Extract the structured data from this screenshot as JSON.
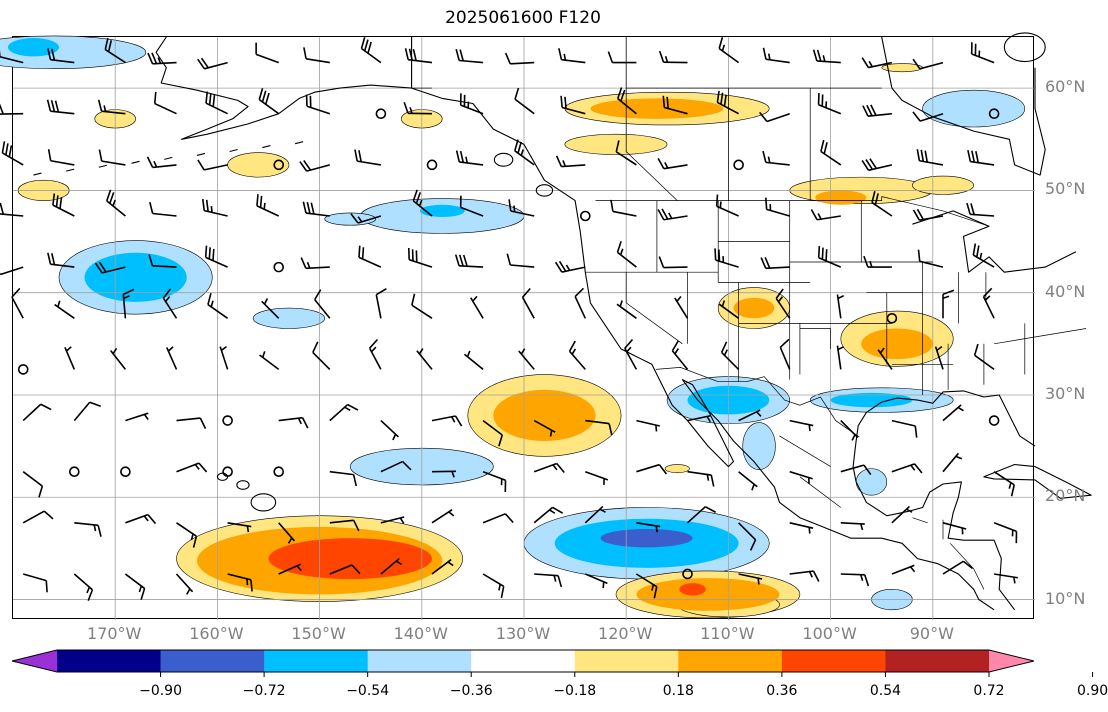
{
  "title": "2025061600 F120",
  "lat_ticks": [
    {
      "label": "60°N",
      "lat": 60
    },
    {
      "label": "50°N",
      "lat": 50
    },
    {
      "label": "40°N",
      "lat": 40
    },
    {
      "label": "30°N",
      "lat": 30
    },
    {
      "label": "20°N",
      "lat": 20
    },
    {
      "label": "10°N",
      "lat": 10
    }
  ],
  "lon_ticks": [
    {
      "label": "170°W",
      "lon": -170
    },
    {
      "label": "160°W",
      "lon": -160
    },
    {
      "label": "150°W",
      "lon": -150
    },
    {
      "label": "140°W",
      "lon": -140
    },
    {
      "label": "130°W",
      "lon": -130
    },
    {
      "label": "120°W",
      "lon": -120
    },
    {
      "label": "110°W",
      "lon": -110
    },
    {
      "label": "100°W",
      "lon": -100
    },
    {
      "label": "90°W",
      "lon": -90
    }
  ],
  "colorbar": {
    "levels": [
      "−0.90",
      "−0.72",
      "−0.54",
      "−0.36",
      "−0.18",
      "0.18",
      "0.36",
      "0.54",
      "0.72",
      "0.90"
    ],
    "colors": [
      "#9b30d6",
      "#00008b",
      "#3a5fcd",
      "#00bfff",
      "#b0e0ff",
      "#ffffff",
      "#ffe680",
      "#ffa500",
      "#ff4500",
      "#b22222",
      "#ff88aa"
    ]
  },
  "map": {
    "extent": {
      "lon_min": -180,
      "lon_max": -80,
      "lat_min": 8,
      "lat_max": 65
    },
    "gridline_color": "#a0a0a0",
    "coastline_color": "#000000",
    "anomaly_regions": [
      {
        "sign": "neg",
        "level": 1,
        "lon": -176,
        "lat": 63.5,
        "rx": 9,
        "ry": 1.6
      },
      {
        "sign": "neg",
        "level": 2,
        "lon": -178,
        "lat": 64,
        "rx": 2.5,
        "ry": 0.9
      },
      {
        "sign": "neg",
        "level": 1,
        "lon": -168,
        "lat": 41.5,
        "rx": 7.5,
        "ry": 3.6
      },
      {
        "sign": "neg",
        "level": 2,
        "lon": -168,
        "lat": 41.5,
        "rx": 5,
        "ry": 2.4
      },
      {
        "sign": "neg",
        "level": 1,
        "lon": -138,
        "lat": 47.5,
        "rx": 8,
        "ry": 1.7
      },
      {
        "sign": "neg",
        "level": 2,
        "lon": -138,
        "lat": 48,
        "rx": 2.2,
        "ry": 0.6
      },
      {
        "sign": "neg",
        "level": 1,
        "lon": -147,
        "lat": 47.2,
        "rx": 2.5,
        "ry": 0.6
      },
      {
        "sign": "neg",
        "level": 1,
        "lon": -153,
        "lat": 37.5,
        "rx": 3.5,
        "ry": 1.0
      },
      {
        "sign": "neg",
        "level": 1,
        "lon": -140,
        "lat": 23,
        "rx": 7,
        "ry": 1.8
      },
      {
        "sign": "neg",
        "level": 1,
        "lon": -118,
        "lat": 15.5,
        "rx": 12,
        "ry": 3.5
      },
      {
        "sign": "neg",
        "level": 2,
        "lon": -118,
        "lat": 15.5,
        "rx": 9,
        "ry": 2.4
      },
      {
        "sign": "neg",
        "level": 3,
        "lon": -118,
        "lat": 16,
        "rx": 4.5,
        "ry": 0.9
      },
      {
        "sign": "neg",
        "level": 1,
        "lon": -110,
        "lat": 29.5,
        "rx": 6,
        "ry": 2.3
      },
      {
        "sign": "neg",
        "level": 2,
        "lon": -110,
        "lat": 29.5,
        "rx": 4,
        "ry": 1.4
      },
      {
        "sign": "neg",
        "level": 1,
        "lon": -95,
        "lat": 29.5,
        "rx": 7,
        "ry": 1.2
      },
      {
        "sign": "neg",
        "level": 2,
        "lon": -96,
        "lat": 29.5,
        "rx": 4,
        "ry": 0.7
      },
      {
        "sign": "neg",
        "level": 1,
        "lon": -86,
        "lat": 58,
        "rx": 5,
        "ry": 1.8
      },
      {
        "sign": "neg",
        "level": 1,
        "lon": -107,
        "lat": 25,
        "rx": 1.6,
        "ry": 2.3
      },
      {
        "sign": "neg",
        "level": 1,
        "lon": -96,
        "lat": 21.5,
        "rx": 1.5,
        "ry": 1.3
      },
      {
        "sign": "neg",
        "level": 1,
        "lon": -94,
        "lat": 10,
        "rx": 2,
        "ry": 1.0
      },
      {
        "sign": "pos",
        "level": 1,
        "lon": -150,
        "lat": 14,
        "rx": 14,
        "ry": 4.2
      },
      {
        "sign": "pos",
        "level": 2,
        "lon": -150,
        "lat": 13.8,
        "rx": 12,
        "ry": 3.3
      },
      {
        "sign": "pos",
        "level": 3,
        "lon": -147,
        "lat": 14,
        "rx": 8,
        "ry": 2.0
      },
      {
        "sign": "pos",
        "level": 1,
        "lon": -128,
        "lat": 28,
        "rx": 7.5,
        "ry": 4.0
      },
      {
        "sign": "pos",
        "level": 2,
        "lon": -128,
        "lat": 28,
        "rx": 5,
        "ry": 2.5
      },
      {
        "sign": "pos",
        "level": 1,
        "lon": -112,
        "lat": 10.5,
        "rx": 9,
        "ry": 2.3
      },
      {
        "sign": "pos",
        "level": 2,
        "lon": -112,
        "lat": 10.5,
        "rx": 7,
        "ry": 1.6
      },
      {
        "sign": "pos",
        "level": 3,
        "lon": -113.5,
        "lat": 11,
        "rx": 1.3,
        "ry": 0.6
      },
      {
        "sign": "pos",
        "level": 1,
        "lon": -116,
        "lat": 58,
        "rx": 10,
        "ry": 1.6
      },
      {
        "sign": "pos",
        "level": 2,
        "lon": -117,
        "lat": 58,
        "rx": 6.5,
        "ry": 1.0
      },
      {
        "sign": "pos",
        "level": 1,
        "lon": -121,
        "lat": 54.5,
        "rx": 5,
        "ry": 1.0
      },
      {
        "sign": "pos",
        "level": 1,
        "lon": -93.5,
        "lat": 35.5,
        "rx": 5.5,
        "ry": 2.7
      },
      {
        "sign": "pos",
        "level": 2,
        "lon": -93.5,
        "lat": 35,
        "rx": 3.5,
        "ry": 1.5
      },
      {
        "sign": "pos",
        "level": 1,
        "lon": -107.5,
        "lat": 38.5,
        "rx": 3.5,
        "ry": 2.0
      },
      {
        "sign": "pos",
        "level": 2,
        "lon": -107.5,
        "lat": 38.5,
        "rx": 2.0,
        "ry": 1.0
      },
      {
        "sign": "pos",
        "level": 1,
        "lon": -97,
        "lat": 50,
        "rx": 7,
        "ry": 1.3
      },
      {
        "sign": "pos",
        "level": 2,
        "lon": -99,
        "lat": 49.3,
        "rx": 2.5,
        "ry": 0.7
      },
      {
        "sign": "pos",
        "level": 1,
        "lon": -89,
        "lat": 50.5,
        "rx": 3,
        "ry": 0.9
      },
      {
        "sign": "pos",
        "level": 1,
        "lon": -156,
        "lat": 52.5,
        "rx": 3,
        "ry": 1.2
      },
      {
        "sign": "pos",
        "level": 1,
        "lon": -177,
        "lat": 50,
        "rx": 2.5,
        "ry": 1.0
      },
      {
        "sign": "pos",
        "level": 1,
        "lon": -170,
        "lat": 57,
        "rx": 2,
        "ry": 0.9
      },
      {
        "sign": "pos",
        "level": 1,
        "lon": -140,
        "lat": 57,
        "rx": 2,
        "ry": 0.9
      },
      {
        "sign": "pos",
        "level": 1,
        "lon": -93,
        "lat": 62,
        "rx": 2,
        "ry": 0.4
      },
      {
        "sign": "pos",
        "level": 1,
        "lon": -115,
        "lat": 22.8,
        "rx": 1.2,
        "ry": 0.4
      },
      {
        "sign": "pos",
        "level": 1,
        "lon": -110,
        "lat": 9.5,
        "rx": 5,
        "ry": 1.2
      }
    ]
  }
}
